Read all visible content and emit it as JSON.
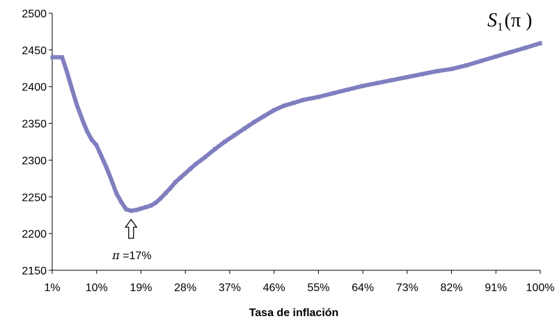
{
  "chart_data": {
    "type": "line",
    "title": "",
    "xlabel": "Tasa de inflación",
    "ylabel": "",
    "x_unit": "%",
    "xlim": [
      1,
      100
    ],
    "ylim": [
      2150,
      2500
    ],
    "x_ticks": [
      "1%",
      "10%",
      "19%",
      "28%",
      "37%",
      "46%",
      "55%",
      "64%",
      "73%",
      "82%",
      "91%",
      "100%"
    ],
    "y_ticks": [
      "2150",
      "2200",
      "2250",
      "2300",
      "2350",
      "2400",
      "2450",
      "2500"
    ],
    "grid": false,
    "legend": "none",
    "series": [
      {
        "color": "#7F7FBF",
        "x": [
          1,
          2,
          3,
          4,
          5,
          6,
          7,
          8,
          9,
          10,
          11,
          12,
          13,
          14,
          15,
          16,
          17,
          18,
          19,
          20,
          21,
          22,
          23,
          24,
          25,
          26,
          27,
          28,
          29,
          30,
          32,
          34,
          36,
          38,
          40,
          42,
          44,
          46,
          48,
          50,
          52,
          55,
          58,
          61,
          64,
          67,
          70,
          73,
          76,
          79,
          82,
          85,
          88,
          91,
          94,
          97,
          100
        ],
        "values": [
          2440,
          2440,
          2440,
          2420,
          2397,
          2375,
          2357,
          2340,
          2328,
          2320,
          2305,
          2290,
          2273,
          2255,
          2243,
          2233,
          2231,
          2232,
          2234,
          2236,
          2238,
          2242,
          2248,
          2255,
          2262,
          2270,
          2276,
          2282,
          2288,
          2294,
          2304,
          2315,
          2325,
          2334,
          2343,
          2352,
          2360,
          2368,
          2374,
          2378,
          2382,
          2386,
          2391,
          2396,
          2401,
          2405,
          2409,
          2413,
          2417,
          2421,
          2424,
          2429,
          2435,
          2441,
          2447,
          2453,
          2459
        ]
      }
    ],
    "curve_label": {
      "symbol": "S",
      "subscript": "1",
      "argument": "(π )"
    },
    "annotation": {
      "x": 17,
      "arrow": "up",
      "symbol": "π",
      "text": " =17%"
    }
  }
}
